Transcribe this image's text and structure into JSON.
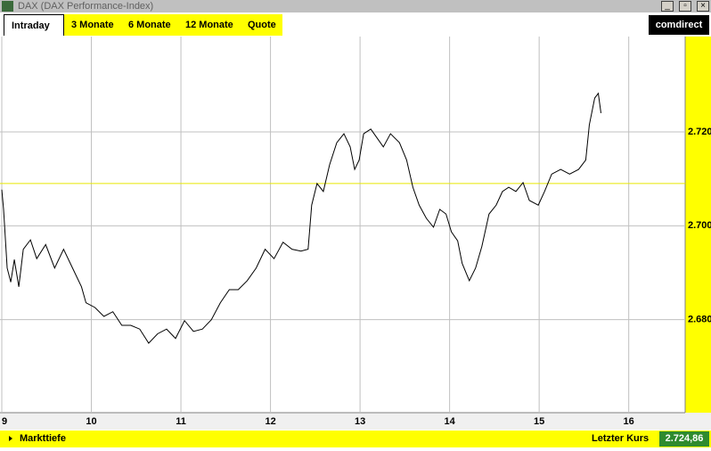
{
  "window": {
    "title": "DAX (DAX Performance-Index)"
  },
  "tabs": [
    "Intraday",
    "3 Monate",
    "6 Monate",
    "12 Monate",
    "Quote"
  ],
  "logo": "comdirect",
  "footer": {
    "left": "Markttiefe",
    "last_label": "Letzter Kurs",
    "last_value": "2.724,86"
  },
  "chart_data": {
    "type": "line",
    "x": [
      9.0,
      9.02,
      9.06,
      9.1,
      9.14,
      9.19,
      9.24,
      9.32,
      9.39,
      9.49,
      9.59,
      9.69,
      9.79,
      9.89,
      9.94,
      10.04,
      10.14,
      10.24,
      10.34,
      10.44,
      10.54,
      10.64,
      10.74,
      10.84,
      10.94,
      11.04,
      11.14,
      11.24,
      11.34,
      11.44,
      11.54,
      11.64,
      11.74,
      11.84,
      11.94,
      12.04,
      12.14,
      12.24,
      12.34,
      12.42,
      12.46,
      12.52,
      12.59,
      12.66,
      12.74,
      12.82,
      12.89,
      12.94,
      12.99,
      13.04,
      13.12,
      13.19,
      13.26,
      13.34,
      13.44,
      13.52,
      13.59,
      13.66,
      13.74,
      13.82,
      13.89,
      13.96,
      14.02,
      14.09,
      14.14,
      14.22,
      14.29,
      14.36,
      14.44,
      14.52,
      14.59,
      14.66,
      14.74,
      14.82,
      14.89,
      14.99,
      15.06,
      15.14,
      15.24,
      15.34,
      15.44,
      15.52,
      15.56,
      15.62,
      15.66,
      15.69
    ],
    "series": [
      {
        "color": "#000000",
        "values": [
          2707.7,
          2703.5,
          2691,
          2688,
          2692.8,
          2687,
          2695,
          2697,
          2693,
          2696,
          2691,
          2695,
          2691,
          2687,
          2683.6,
          2682.6,
          2680.7,
          2681.7,
          2678.8,
          2678.8,
          2678,
          2675,
          2677,
          2678,
          2676,
          2679.8,
          2677.5,
          2678,
          2680,
          2683.6,
          2686.4,
          2686.4,
          2688.3,
          2691,
          2695,
          2693,
          2696.5,
          2695,
          2694.6,
          2695,
          2704.4,
          2709,
          2707.3,
          2713,
          2717.7,
          2719.6,
          2716.8,
          2712,
          2714,
          2719.6,
          2720.6,
          2718.7,
          2716.8,
          2719.6,
          2717.7,
          2714,
          2708.2,
          2704.4,
          2701.6,
          2699.7,
          2703.5,
          2702.5,
          2698.7,
          2696.8,
          2692,
          2688.3,
          2691,
          2695.6,
          2702.5,
          2704.4,
          2707.3,
          2708.2,
          2707.3,
          2709.2,
          2705.4,
          2704.4,
          2707.3,
          2711,
          2712,
          2711,
          2712,
          2714,
          2721.5,
          2727.2,
          2728.2,
          2724
        ]
      }
    ],
    "reference_line": 2709,
    "reference_color": "#e6e600",
    "xlim": [
      8.98,
      16.63
    ],
    "xticks": [
      9,
      10,
      11,
      12,
      13,
      14,
      15,
      16
    ],
    "ylim": [
      2660.2,
      2740.3
    ],
    "yticks": [
      {
        "value": 2680,
        "label": "2.680"
      },
      {
        "value": 2700,
        "label": "2.700"
      },
      {
        "value": 2720,
        "label": "2.720"
      }
    ],
    "grid": true
  }
}
